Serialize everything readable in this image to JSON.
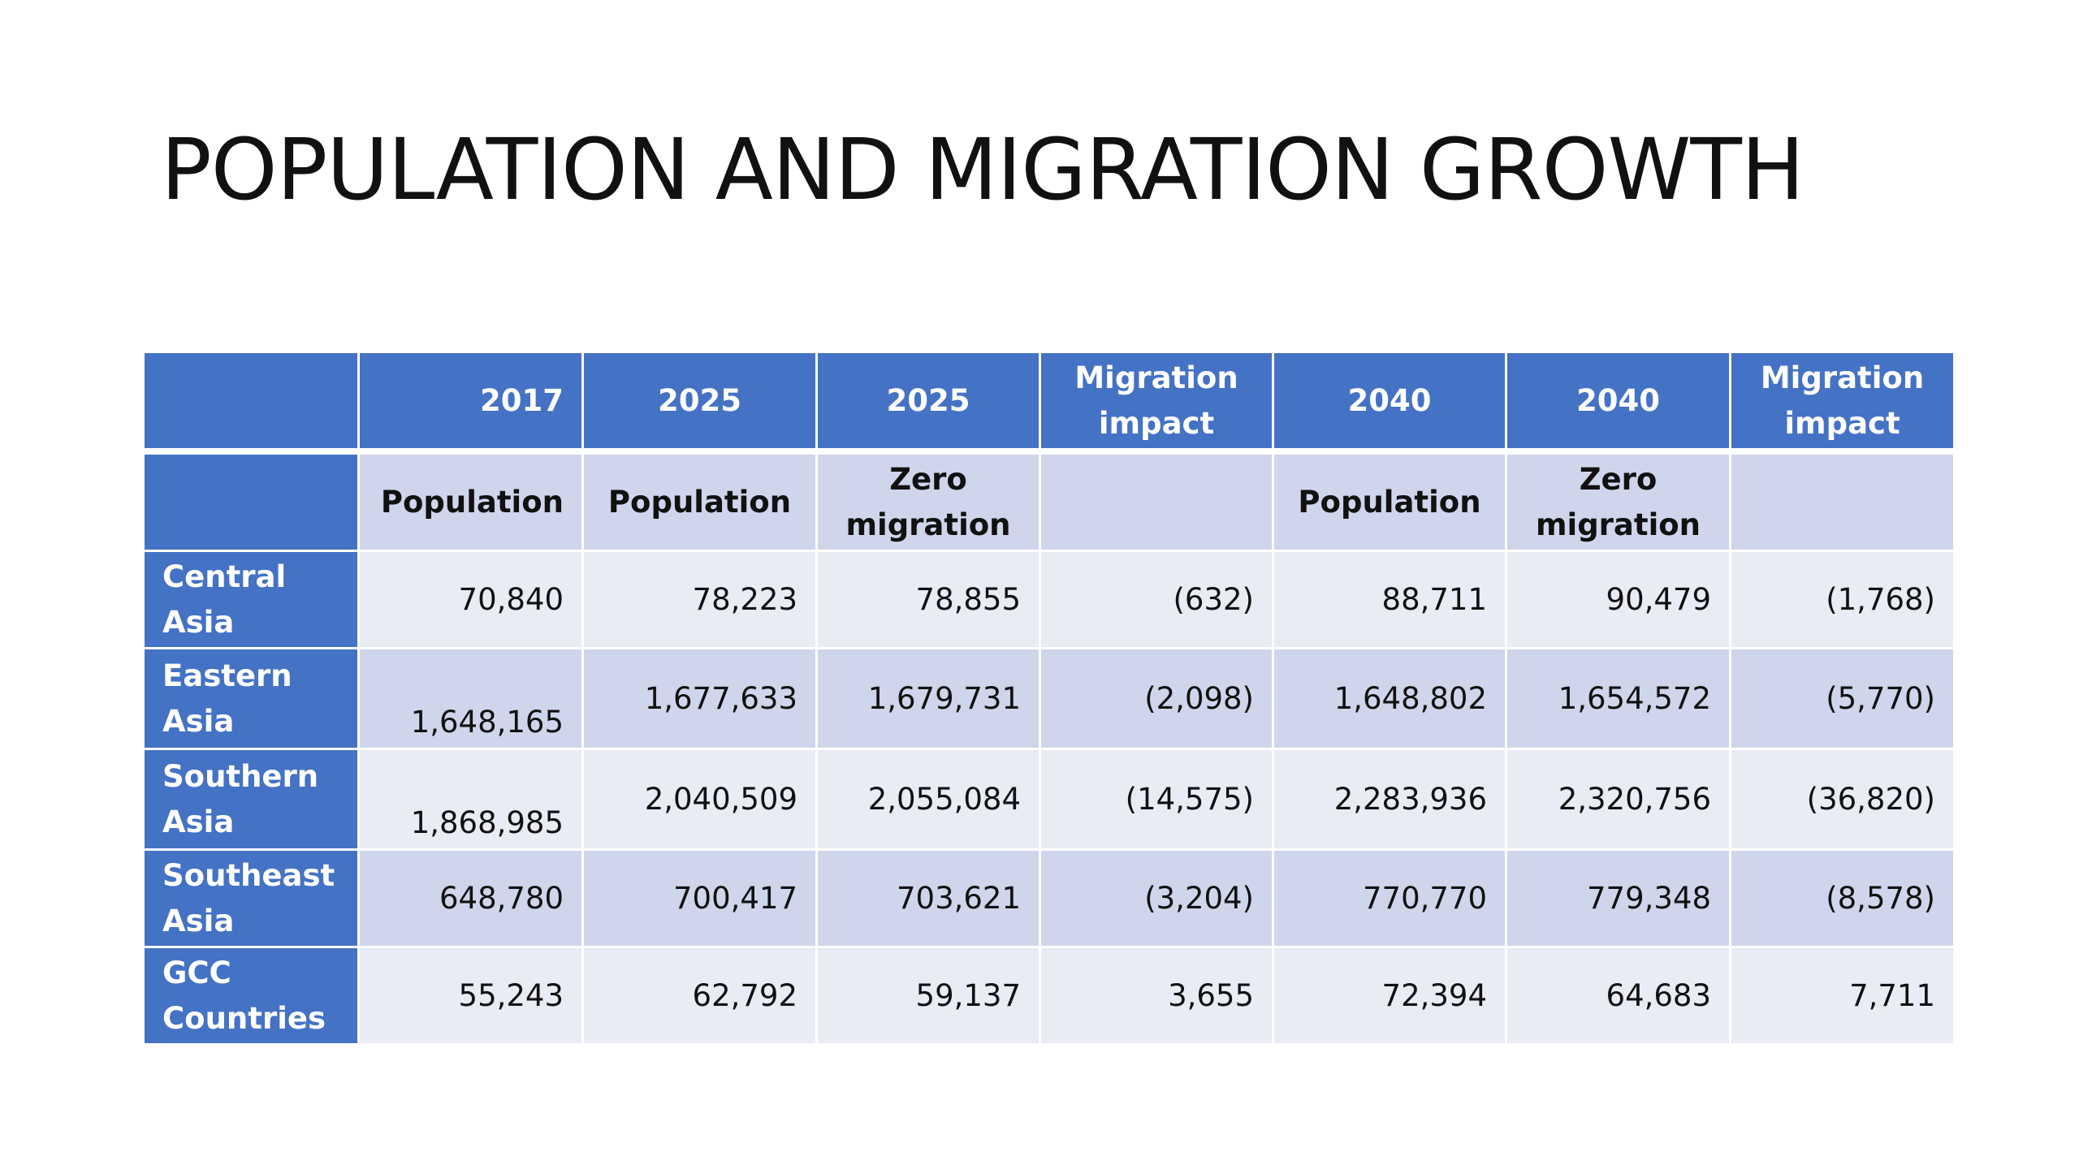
{
  "slide": {
    "title": "POPULATION AND MIGRATION GROWTH"
  },
  "table": {
    "header_years": [
      "",
      "2017",
      "2025",
      "2025",
      "Migration impact",
      "2040",
      "2040",
      "Migration impact"
    ],
    "header_types": [
      "",
      "Population",
      "Population",
      "Zero migration",
      "",
      "Population",
      "Zero migration",
      ""
    ],
    "rows": [
      {
        "region": "Central Asia",
        "values": [
          "70,840",
          "78,223",
          "78,855",
          "(632)",
          "88,711",
          "90,479",
          "(1,768)"
        ]
      },
      {
        "region": "Eastern Asia",
        "values": [
          "1,648,165",
          "1,677,633",
          "1,679,731",
          "(2,098)",
          "1,648,802",
          "1,654,572",
          "(5,770)"
        ]
      },
      {
        "region": "Southern Asia",
        "values": [
          "1,868,985",
          "2,040,509",
          "2,055,084",
          "(14,575)",
          "2,283,936",
          "2,320,756",
          "(36,820)"
        ]
      },
      {
        "region": "Southeast Asia",
        "values": [
          "648,780",
          "700,417",
          "703,621",
          "(3,204)",
          "770,770",
          "779,348",
          "(8,578)"
        ]
      },
      {
        "region": "GCC Countries",
        "values": [
          "55,243",
          "62,792",
          "59,137",
          "3,655",
          "72,394",
          "64,683",
          "7,711"
        ]
      }
    ]
  },
  "colors": {
    "header_blue": "#4472c4",
    "band_dark": "#cfd5ea",
    "band_light": "#e9ebf5"
  }
}
